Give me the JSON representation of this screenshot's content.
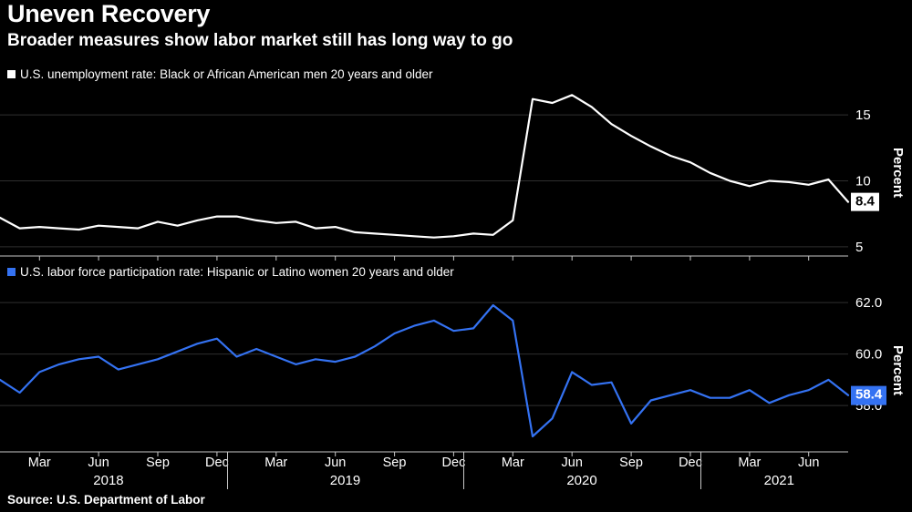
{
  "header": {
    "title": "Uneven Recovery",
    "subtitle": "Broader measures show labor market still has long way to go"
  },
  "source": "Source: U.S. Department of Labor",
  "colors": {
    "background": "#000000",
    "grid": "#2f2f2f",
    "axis": "#c8c8c8",
    "text": "#ffffff",
    "accent_blue": "#3472f2"
  },
  "chart_data": [
    {
      "type": "line",
      "title": "U.S. unemployment rate: Black or African American men 20 years and older",
      "ylabel": "Percent",
      "frequency": "monthly",
      "x": [
        "2018-01",
        "2018-02",
        "2018-03",
        "2018-04",
        "2018-05",
        "2018-06",
        "2018-07",
        "2018-08",
        "2018-09",
        "2018-10",
        "2018-11",
        "2018-12",
        "2019-01",
        "2019-02",
        "2019-03",
        "2019-04",
        "2019-05",
        "2019-06",
        "2019-07",
        "2019-08",
        "2019-09",
        "2019-10",
        "2019-11",
        "2019-12",
        "2020-01",
        "2020-02",
        "2020-03",
        "2020-04",
        "2020-05",
        "2020-06",
        "2020-07",
        "2020-08",
        "2020-09",
        "2020-10",
        "2020-11",
        "2020-12",
        "2021-01",
        "2021-02",
        "2021-03",
        "2021-04",
        "2021-05",
        "2021-06",
        "2021-07",
        "2021-08"
      ],
      "values": [
        7.2,
        6.4,
        6.5,
        6.4,
        6.3,
        6.6,
        6.5,
        6.4,
        6.9,
        6.6,
        7.0,
        7.3,
        7.3,
        7.0,
        6.8,
        6.9,
        6.4,
        6.5,
        6.1,
        6.0,
        5.9,
        5.8,
        5.7,
        5.8,
        6.0,
        5.9,
        7.0,
        16.2,
        15.9,
        16.5,
        15.6,
        14.3,
        13.4,
        12.6,
        11.9,
        11.4,
        10.6,
        10.0,
        9.6,
        10.0,
        9.9,
        9.7,
        10.1,
        8.4
      ],
      "yticks": [
        5,
        10,
        15
      ],
      "ytick_labels": [
        "5",
        "10",
        "15"
      ],
      "ylim": [
        4.3,
        16.8
      ],
      "grid": true,
      "color": "#ffffff",
      "last_value_label": "8.4",
      "badge_bg": "#ffffff",
      "badge_fg": "#000000",
      "legend_position": "top-left"
    },
    {
      "type": "line",
      "title": "U.S. labor force participation rate: Hispanic or Latino women 20 years and older",
      "ylabel": "Percent",
      "frequency": "monthly",
      "x": [
        "2018-01",
        "2018-02",
        "2018-03",
        "2018-04",
        "2018-05",
        "2018-06",
        "2018-07",
        "2018-08",
        "2018-09",
        "2018-10",
        "2018-11",
        "2018-12",
        "2019-01",
        "2019-02",
        "2019-03",
        "2019-04",
        "2019-05",
        "2019-06",
        "2019-07",
        "2019-08",
        "2019-09",
        "2019-10",
        "2019-11",
        "2019-12",
        "2020-01",
        "2020-02",
        "2020-03",
        "2020-04",
        "2020-05",
        "2020-06",
        "2020-07",
        "2020-08",
        "2020-09",
        "2020-10",
        "2020-11",
        "2020-12",
        "2021-01",
        "2021-02",
        "2021-03",
        "2021-04",
        "2021-05",
        "2021-06",
        "2021-07",
        "2021-08"
      ],
      "values": [
        59.0,
        58.5,
        59.3,
        59.6,
        59.8,
        59.9,
        59.4,
        59.6,
        59.8,
        60.1,
        60.4,
        60.6,
        59.9,
        60.2,
        59.9,
        59.6,
        59.8,
        59.7,
        59.9,
        60.3,
        60.8,
        61.1,
        61.3,
        60.9,
        61.0,
        61.9,
        61.3,
        56.8,
        57.5,
        59.3,
        58.8,
        58.9,
        57.3,
        58.2,
        58.4,
        58.6,
        58.3,
        58.3,
        58.6,
        58.1,
        58.4,
        58.6,
        59.0,
        58.4
      ],
      "yticks": [
        58,
        60,
        62
      ],
      "ytick_labels": [
        "58.0",
        "60.0",
        "62.0"
      ],
      "ylim": [
        56.2,
        62.5
      ],
      "grid": true,
      "color": "#3472f2",
      "last_value_label": "58.4",
      "badge_bg": "#3472f2",
      "badge_fg": "#ffffff",
      "legend_position": "top-left"
    }
  ],
  "xaxis": {
    "month_ticks": [
      {
        "label": "Mar",
        "index": 2
      },
      {
        "label": "Jun",
        "index": 5
      },
      {
        "label": "Sep",
        "index": 8
      },
      {
        "label": "Dec",
        "index": 11
      },
      {
        "label": "Mar",
        "index": 14
      },
      {
        "label": "Jun",
        "index": 17
      },
      {
        "label": "Sep",
        "index": 20
      },
      {
        "label": "Dec",
        "index": 23
      },
      {
        "label": "Mar",
        "index": 26
      },
      {
        "label": "Jun",
        "index": 29
      },
      {
        "label": "Sep",
        "index": 32
      },
      {
        "label": "Dec",
        "index": 35
      },
      {
        "label": "Mar",
        "index": 38
      },
      {
        "label": "Jun",
        "index": 41
      }
    ],
    "year_labels": [
      {
        "label": "2018",
        "index": 5.5
      },
      {
        "label": "2019",
        "index": 17.5
      },
      {
        "label": "2020",
        "index": 29.5
      },
      {
        "label": "2021",
        "index": 39.5
      }
    ],
    "year_separator_indices": [
      11.5,
      23.5,
      35.5
    ]
  }
}
